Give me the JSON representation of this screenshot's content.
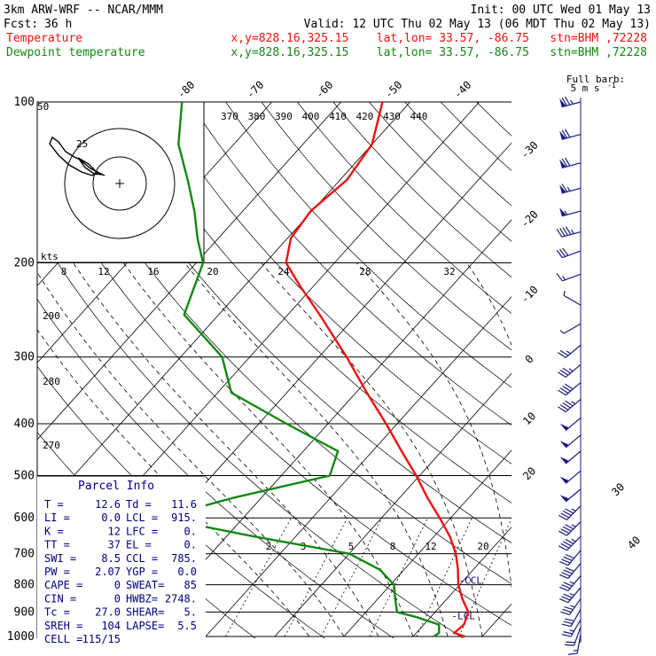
{
  "header": {
    "model": "3km ARW-WRF -- NCAR/MMM",
    "init": "Init: 00 UTC Wed 01 May 13",
    "fcst_label": "Fcst:",
    "fcst_value": "36 h",
    "valid": "Valid: 12 UTC Thu 02 May 13 (06 MDT Thu 02 May 13)",
    "temp_label": "Temperature",
    "dew_label": "Dewpoint temperature",
    "location": "x,y=828.16,325.15    lat,lon= 33.57, -86.75   stn=BHM ,72228"
  },
  "colors": {
    "temperature": "#ee1111",
    "dewpoint": "#118811",
    "wind": "#1a1a80",
    "parcel": "#000080",
    "grid": "#000000"
  },
  "chart_data": {
    "type": "line",
    "y_axis": "pressure (hPa, log scale)",
    "ylim": [
      1000,
      100
    ],
    "isobars": [
      100,
      200,
      300,
      400,
      500,
      600,
      700,
      800,
      900,
      1000
    ],
    "isotherm_labels": [
      "-80",
      "-70",
      "-60",
      "-50",
      "-40",
      "-30",
      "-20",
      "-10",
      "0",
      "10",
      "20",
      "30",
      "40"
    ],
    "theta_labels": [
      "370",
      "380",
      "390",
      "400",
      "410",
      "420",
      "430",
      "440"
    ],
    "theta_left_labels": [
      "290",
      "280",
      "270"
    ],
    "mixing_ratio_labels": [
      "2",
      "3",
      "5",
      "8",
      "12",
      "20"
    ],
    "series": [
      {
        "name": "Temperature",
        "points": [
          [
            1000,
            17.5
          ],
          [
            985,
            15.5
          ],
          [
            950,
            15.8
          ],
          [
            900,
            14.8
          ],
          [
            850,
            12.2
          ],
          [
            800,
            9.8
          ],
          [
            750,
            7.8
          ],
          [
            700,
            5.4
          ],
          [
            650,
            2.3
          ],
          [
            600,
            -1.6
          ],
          [
            550,
            -6.0
          ],
          [
            500,
            -10.5
          ],
          [
            450,
            -15.8
          ],
          [
            400,
            -21.6
          ],
          [
            350,
            -28.4
          ],
          [
            300,
            -36.0
          ],
          [
            250,
            -45.4
          ],
          [
            220,
            -52.2
          ],
          [
            200,
            -57.0
          ],
          [
            180,
            -59.5
          ],
          [
            160,
            -60.2
          ],
          [
            140,
            -59.0
          ],
          [
            120,
            -60.0
          ],
          [
            100,
            -64.0
          ]
        ]
      },
      {
        "name": "Dewpoint temperature",
        "points": [
          [
            1000,
            13.0
          ],
          [
            985,
            13.3
          ],
          [
            950,
            12.2
          ],
          [
            920,
            8.0
          ],
          [
            900,
            4.5
          ],
          [
            850,
            2.5
          ],
          [
            800,
            0.5
          ],
          [
            750,
            -3.5
          ],
          [
            700,
            -10.0
          ],
          [
            650,
            -26.0
          ],
          [
            600,
            -42.0
          ],
          [
            550,
            -34.0
          ],
          [
            500,
            -23.0
          ],
          [
            450,
            -25.0
          ],
          [
            400,
            -36.0
          ],
          [
            350,
            -48.0
          ],
          [
            300,
            -54.0
          ],
          [
            250,
            -65.0
          ],
          [
            200,
            -69.0
          ],
          [
            180,
            -73.0
          ],
          [
            160,
            -77.0
          ],
          [
            140,
            -82.0
          ],
          [
            120,
            -88.0
          ],
          [
            100,
            -93.0
          ]
        ]
      }
    ],
    "wind_barbs": [
      {
        "p": 100,
        "dir": 255,
        "spd": 75
      },
      {
        "p": 115,
        "dir": 255,
        "spd": 70
      },
      {
        "p": 130,
        "dir": 255,
        "spd": 70
      },
      {
        "p": 145,
        "dir": 255,
        "spd": 65
      },
      {
        "p": 160,
        "dir": 255,
        "spd": 55
      },
      {
        "p": 175,
        "dir": 255,
        "spd": 45
      },
      {
        "p": 190,
        "dir": 250,
        "spd": 30
      },
      {
        "p": 210,
        "dir": 250,
        "spd": 15
      },
      {
        "p": 240,
        "dir": 300,
        "spd": 5
      },
      {
        "p": 260,
        "dir": 240,
        "spd": 5
      },
      {
        "p": 285,
        "dir": 230,
        "spd": 25
      },
      {
        "p": 310,
        "dir": 230,
        "spd": 35
      },
      {
        "p": 335,
        "dir": 230,
        "spd": 40
      },
      {
        "p": 360,
        "dir": 230,
        "spd": 45
      },
      {
        "p": 390,
        "dir": 230,
        "spd": 50
      },
      {
        "p": 420,
        "dir": 230,
        "spd": 50
      },
      {
        "p": 450,
        "dir": 230,
        "spd": 50
      },
      {
        "p": 490,
        "dir": 230,
        "spd": 50
      },
      {
        "p": 530,
        "dir": 230,
        "spd": 50
      },
      {
        "p": 570,
        "dir": 225,
        "spd": 45
      },
      {
        "p": 610,
        "dir": 225,
        "spd": 45
      },
      {
        "p": 650,
        "dir": 225,
        "spd": 45
      },
      {
        "p": 690,
        "dir": 220,
        "spd": 40
      },
      {
        "p": 730,
        "dir": 220,
        "spd": 40
      },
      {
        "p": 770,
        "dir": 220,
        "spd": 35
      },
      {
        "p": 810,
        "dir": 220,
        "spd": 35
      },
      {
        "p": 850,
        "dir": 215,
        "spd": 35
      },
      {
        "p": 890,
        "dir": 210,
        "spd": 30
      },
      {
        "p": 930,
        "dir": 210,
        "spd": 25
      },
      {
        "p": 960,
        "dir": 200,
        "spd": 20
      },
      {
        "p": 990,
        "dir": 190,
        "spd": 15
      }
    ],
    "wind_legend": {
      "line1": "Full barb:",
      "line2": "5 m s",
      "sup": "-1"
    },
    "hodograph": {
      "kts_label": "kts",
      "speed_labels": [
        "25",
        "50"
      ],
      "x_ticks": [
        "8",
        "12",
        "16",
        "20",
        "24",
        "28",
        "32"
      ]
    },
    "annotations": [
      {
        "text": "CCL",
        "p": 785,
        "t": 8.0
      },
      {
        "text": "LCL",
        "p": 915,
        "t": 11.6
      }
    ]
  },
  "parcel_info": {
    "title": "Parcel Info",
    "rows": [
      [
        "T    =",
        "12.6",
        "Td  =",
        "11.6"
      ],
      [
        "LI   =",
        "0.0",
        "LCL =",
        "915."
      ],
      [
        "K    =",
        "12",
        "LFC =",
        "0."
      ],
      [
        "TT   =",
        "37",
        "EL  =",
        "0."
      ],
      [
        "SWI  =",
        "8.5",
        "CCL =",
        "785."
      ],
      [
        "PW   =",
        "2.07",
        "YGP =",
        "0.0"
      ],
      [
        "CAPE =",
        "0",
        "SWEAT=",
        "85"
      ],
      [
        "CIN  =",
        "0",
        "HWBZ=",
        "2748."
      ],
      [
        "Tc   =",
        "27.0",
        "SHEAR=",
        "5."
      ],
      [
        "SREH =",
        "104",
        "LAPSE=",
        "5.5"
      ],
      [
        "CELL =",
        "115/15",
        "",
        ""
      ]
    ]
  }
}
